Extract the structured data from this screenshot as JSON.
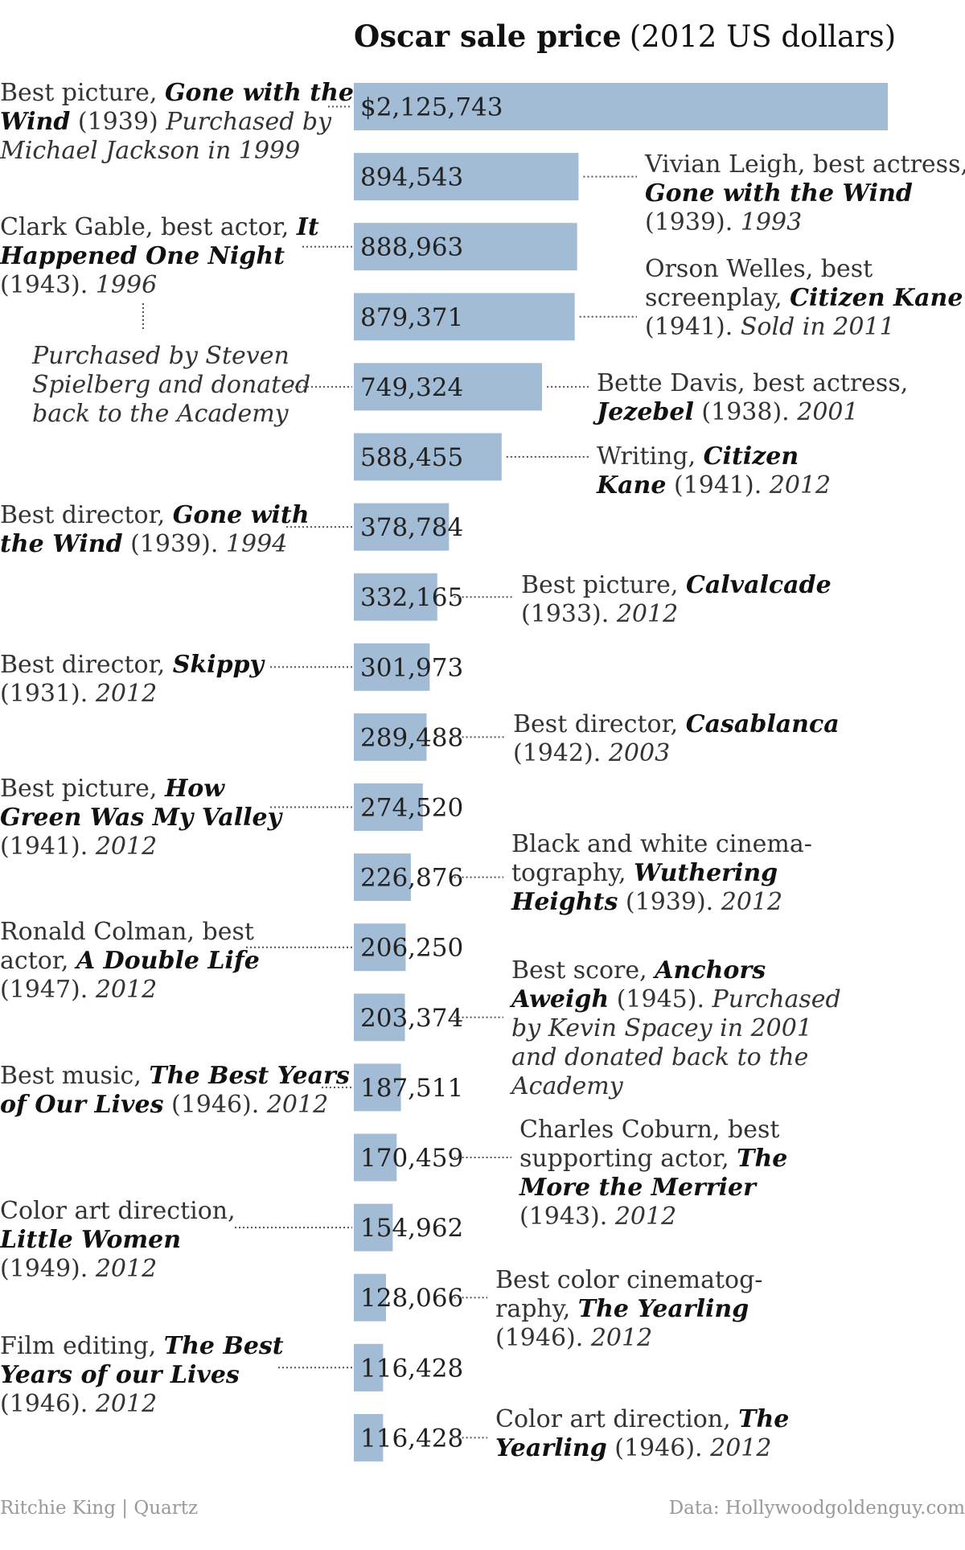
{
  "chart_data": {
    "type": "bar",
    "orientation": "horizontal",
    "title": "Oscar sale price",
    "title_unit": "(2012 US dollars)",
    "first_value_label": "$2,125,743",
    "bar_color": "#a2bcd6",
    "categories": [
      "Best picture, Gone with the Wind (1939)",
      "Vivian Leigh, best actress, Gone with the Wind (1939)",
      "Clark Gable, best actor, It Happened One Night (1943)",
      "Orson Welles, best screenplay, Citizen Kane (1941)",
      "Bette Davis, best actress, Jezebel (1938)",
      "Writing, Citizen Kane (1941)",
      "Best director, Gone with the Wind (1939)",
      "Best picture, Calvalcade (1933)",
      "Best director, Skippy (1931)",
      "Best director, Casablanca (1942)",
      "Best picture, How Green Was My Valley (1941)",
      "Black and white cinematography, Wuthering Heights (1939)",
      "Ronald Colman, best actor, A Double Life (1947)",
      "Best score, Anchors Aweigh (1945)",
      "Best music, The Best Years of Our Lives (1946)",
      "Charles Coburn, best supporting actor, The More the Merrier (1943)",
      "Color art direction, Little Women (1949)",
      "Best color cinematography, The Yearling (1946)",
      "Film editing, The Best Years of our Lives (1946)",
      "Color art direction, The Yearling (1946)"
    ],
    "values": [
      2125743,
      894543,
      888963,
      879371,
      749324,
      588455,
      378784,
      332165,
      301973,
      289488,
      274520,
      226876,
      206250,
      203374,
      187511,
      170459,
      154962,
      128066,
      116428,
      116428
    ],
    "value_labels": [
      "$2,125,743",
      "894,543",
      "888,963",
      "879,371",
      "749,324",
      "588,455",
      "378,784",
      "332,165",
      "301,973",
      "289,488",
      "274,520",
      "226,876",
      "206,250",
      "203,374",
      "187,511",
      "170,459",
      "154,962",
      "128,066",
      "116,428",
      "116,428"
    ],
    "xlim": [
      0,
      2125743
    ],
    "grid": false,
    "legend": "none",
    "annotations": [
      {
        "bar": 0,
        "side": "left",
        "lines": [
          [
            {
              "t": "Best picture, "
            },
            {
              "t": "Gone with the",
              "s": "bi"
            }
          ],
          [
            {
              "t": "Wind",
              "s": "bi"
            },
            {
              "t": " (1939) "
            },
            {
              "t": "Purchased by",
              "s": "i"
            }
          ],
          [
            {
              "t": "Michael Jackson in 1999",
              "s": "i"
            }
          ]
        ]
      },
      {
        "bar": 1,
        "side": "right",
        "lines": [
          [
            {
              "t": "Vivian Leigh, best actress,"
            }
          ],
          [
            {
              "t": "Gone with the Wind",
              "s": "bi"
            }
          ],
          [
            {
              "t": "(1939). "
            },
            {
              "t": "1993",
              "s": "i"
            }
          ]
        ]
      },
      {
        "bar": 2,
        "side": "left",
        "lines": [
          [
            {
              "t": "Clark Gable, best actor, "
            },
            {
              "t": "It",
              "s": "bi"
            }
          ],
          [
            {
              "t": "Happened One Night",
              "s": "bi"
            }
          ],
          [
            {
              "t": "(1943). "
            },
            {
              "t": "1996",
              "s": "i"
            }
          ]
        ]
      },
      {
        "bar": 3,
        "side": "right",
        "lines": [
          [
            {
              "t": "Orson Welles, best"
            }
          ],
          [
            {
              "t": "screenplay, "
            },
            {
              "t": "Citizen Kane",
              "s": "bi"
            }
          ],
          [
            {
              "t": "(1941). "
            },
            {
              "t": "Sold in 2011",
              "s": "i"
            }
          ]
        ]
      },
      {
        "bar": 4,
        "side": "left",
        "lines": [
          [
            {
              "t": "Purchased by Steven",
              "s": "i"
            }
          ],
          [
            {
              "t": "Spielberg and donated",
              "s": "i"
            }
          ],
          [
            {
              "t": "back to the Academy",
              "s": "i"
            }
          ]
        ]
      },
      {
        "bar": 4,
        "side": "right",
        "lines": [
          [
            {
              "t": "Bette Davis, best actress,"
            }
          ],
          [
            {
              "t": "Jezebel",
              "s": "bi"
            },
            {
              "t": " (1938). "
            },
            {
              "t": "2001",
              "s": "i"
            }
          ]
        ]
      },
      {
        "bar": 5,
        "side": "right",
        "lines": [
          [
            {
              "t": "Writing, "
            },
            {
              "t": "Citizen",
              "s": "bi"
            }
          ],
          [
            {
              "t": "Kane",
              "s": "bi"
            },
            {
              "t": " (1941). "
            },
            {
              "t": "2012",
              "s": "i"
            }
          ]
        ]
      },
      {
        "bar": 6,
        "side": "left",
        "lines": [
          [
            {
              "t": "Best director, "
            },
            {
              "t": "Gone with",
              "s": "bi"
            }
          ],
          [
            {
              "t": "the Wind",
              "s": "bi"
            },
            {
              "t": " (1939). "
            },
            {
              "t": "1994",
              "s": "i"
            }
          ]
        ]
      },
      {
        "bar": 7,
        "side": "right",
        "lines": [
          [
            {
              "t": "Best picture, "
            },
            {
              "t": "Calvalcade",
              "s": "bi"
            }
          ],
          [
            {
              "t": "(1933). "
            },
            {
              "t": "2012",
              "s": "i"
            }
          ]
        ]
      },
      {
        "bar": 8,
        "side": "left",
        "lines": [
          [
            {
              "t": "Best director, "
            },
            {
              "t": "Skippy",
              "s": "bi"
            }
          ],
          [
            {
              "t": "(1931). "
            },
            {
              "t": "2012",
              "s": "i"
            }
          ]
        ]
      },
      {
        "bar": 9,
        "side": "right",
        "lines": [
          [
            {
              "t": "Best director, "
            },
            {
              "t": "Casablanca",
              "s": "bi"
            }
          ],
          [
            {
              "t": "(1942). "
            },
            {
              "t": "2003",
              "s": "i"
            }
          ]
        ]
      },
      {
        "bar": 10,
        "side": "left",
        "lines": [
          [
            {
              "t": "Best picture, "
            },
            {
              "t": "How",
              "s": "bi"
            }
          ],
          [
            {
              "t": "Green Was My Valley",
              "s": "bi"
            }
          ],
          [
            {
              "t": "(1941). "
            },
            {
              "t": "2012",
              "s": "i"
            }
          ]
        ]
      },
      {
        "bar": 11,
        "side": "right",
        "lines": [
          [
            {
              "t": "Black and white cinema-"
            }
          ],
          [
            {
              "t": "tography, "
            },
            {
              "t": "Wuthering",
              "s": "bi"
            }
          ],
          [
            {
              "t": "Heights",
              "s": "bi"
            },
            {
              "t": " (1939). "
            },
            {
              "t": "2012",
              "s": "i"
            }
          ]
        ]
      },
      {
        "bar": 12,
        "side": "left",
        "lines": [
          [
            {
              "t": "Ronald Colman, best"
            }
          ],
          [
            {
              "t": "actor, "
            },
            {
              "t": "A Double Life",
              "s": "bi"
            }
          ],
          [
            {
              "t": "(1947). "
            },
            {
              "t": "2012",
              "s": "i"
            }
          ]
        ]
      },
      {
        "bar": 13,
        "side": "right",
        "lines": [
          [
            {
              "t": "Best score, "
            },
            {
              "t": "Anchors",
              "s": "bi"
            }
          ],
          [
            {
              "t": "Aweigh",
              "s": "bi"
            },
            {
              "t": " (1945). "
            },
            {
              "t": "Purchased",
              "s": "i"
            }
          ],
          [
            {
              "t": "by Kevin Spacey in 2001",
              "s": "i"
            }
          ],
          [
            {
              "t": "and donated back to the",
              "s": "i"
            }
          ],
          [
            {
              "t": "Academy",
              "s": "i"
            }
          ]
        ]
      },
      {
        "bar": 14,
        "side": "left",
        "lines": [
          [
            {
              "t": "Best music, "
            },
            {
              "t": "The Best Years",
              "s": "bi"
            }
          ],
          [
            {
              "t": "of Our Lives",
              "s": "bi"
            },
            {
              "t": " (1946). "
            },
            {
              "t": "2012",
              "s": "i"
            }
          ]
        ]
      },
      {
        "bar": 15,
        "side": "right",
        "lines": [
          [
            {
              "t": "Charles Coburn, best"
            }
          ],
          [
            {
              "t": "supporting actor, "
            },
            {
              "t": "The",
              "s": "bi"
            }
          ],
          [
            {
              "t": "More the Merrier",
              "s": "bi"
            }
          ],
          [
            {
              "t": "(1943). "
            },
            {
              "t": "2012",
              "s": "i"
            }
          ]
        ]
      },
      {
        "bar": 16,
        "side": "left",
        "lines": [
          [
            {
              "t": "Color art direction,"
            }
          ],
          [
            {
              "t": "Little Women",
              "s": "bi"
            }
          ],
          [
            {
              "t": "(1949). "
            },
            {
              "t": "2012",
              "s": "i"
            }
          ]
        ]
      },
      {
        "bar": 17,
        "side": "right",
        "lines": [
          [
            {
              "t": "Best color cinematog-"
            }
          ],
          [
            {
              "t": "raphy, "
            },
            {
              "t": "The Yearling",
              "s": "bi"
            }
          ],
          [
            {
              "t": "(1946). "
            },
            {
              "t": "2012",
              "s": "i"
            }
          ]
        ]
      },
      {
        "bar": 18,
        "side": "left",
        "lines": [
          [
            {
              "t": "Film editing, "
            },
            {
              "t": "The Best",
              "s": "bi"
            }
          ],
          [
            {
              "t": "Years of our Lives",
              "s": "bi"
            }
          ],
          [
            {
              "t": "(1946). "
            },
            {
              "t": "2012",
              "s": "i"
            }
          ]
        ]
      },
      {
        "bar": 19,
        "side": "right",
        "lines": [
          [
            {
              "t": "Color art direction, "
            },
            {
              "t": "The",
              "s": "bi"
            }
          ],
          [
            {
              "t": "Yearling",
              "s": "bi"
            },
            {
              "t": " (1946). "
            },
            {
              "t": "2012",
              "s": "i"
            }
          ]
        ]
      }
    ]
  },
  "footer": {
    "credit": "Ritchie King | Quartz",
    "source": "Data: Hollywoodgoldenguy.com"
  }
}
